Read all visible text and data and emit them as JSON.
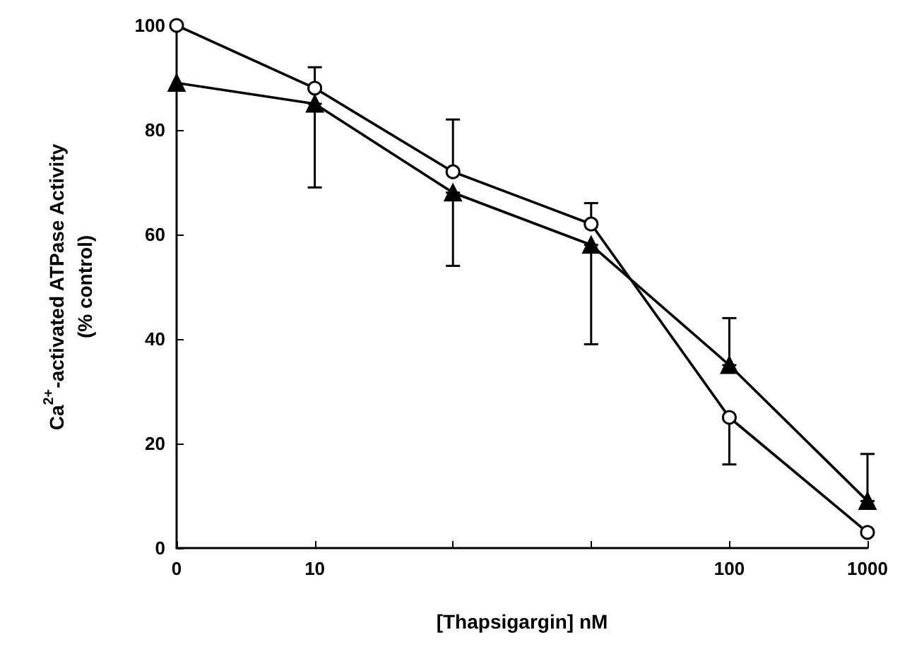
{
  "chart_data": {
    "type": "line",
    "xlabel": "[Thapsigargin] nM",
    "ylabel": "Ca$^{2+}$-activated ATPase Activity\n(% control)",
    "categories": [
      "0",
      "10",
      null,
      null,
      "100",
      "1000"
    ],
    "ylim": [
      0,
      100
    ],
    "yticks": [
      0,
      20,
      40,
      60,
      80,
      100
    ],
    "grid": false,
    "series": [
      {
        "color": "#000000",
        "marker": "circle",
        "values": [
          100,
          88,
          72,
          62,
          25,
          3
        ],
        "errors": [
          null,
          [
            88,
            92
          ],
          [
            72,
            82
          ],
          [
            62,
            66
          ],
          [
            16,
            25
          ],
          null
        ]
      },
      {
        "color": "#000000",
        "marker": "triangle",
        "values": [
          89,
          85,
          68,
          58,
          35,
          9
        ],
        "errors": [
          null,
          [
            69,
            85
          ],
          [
            54,
            68
          ],
          [
            39,
            58
          ],
          [
            35,
            44
          ],
          [
            9,
            18
          ]
        ]
      }
    ]
  }
}
